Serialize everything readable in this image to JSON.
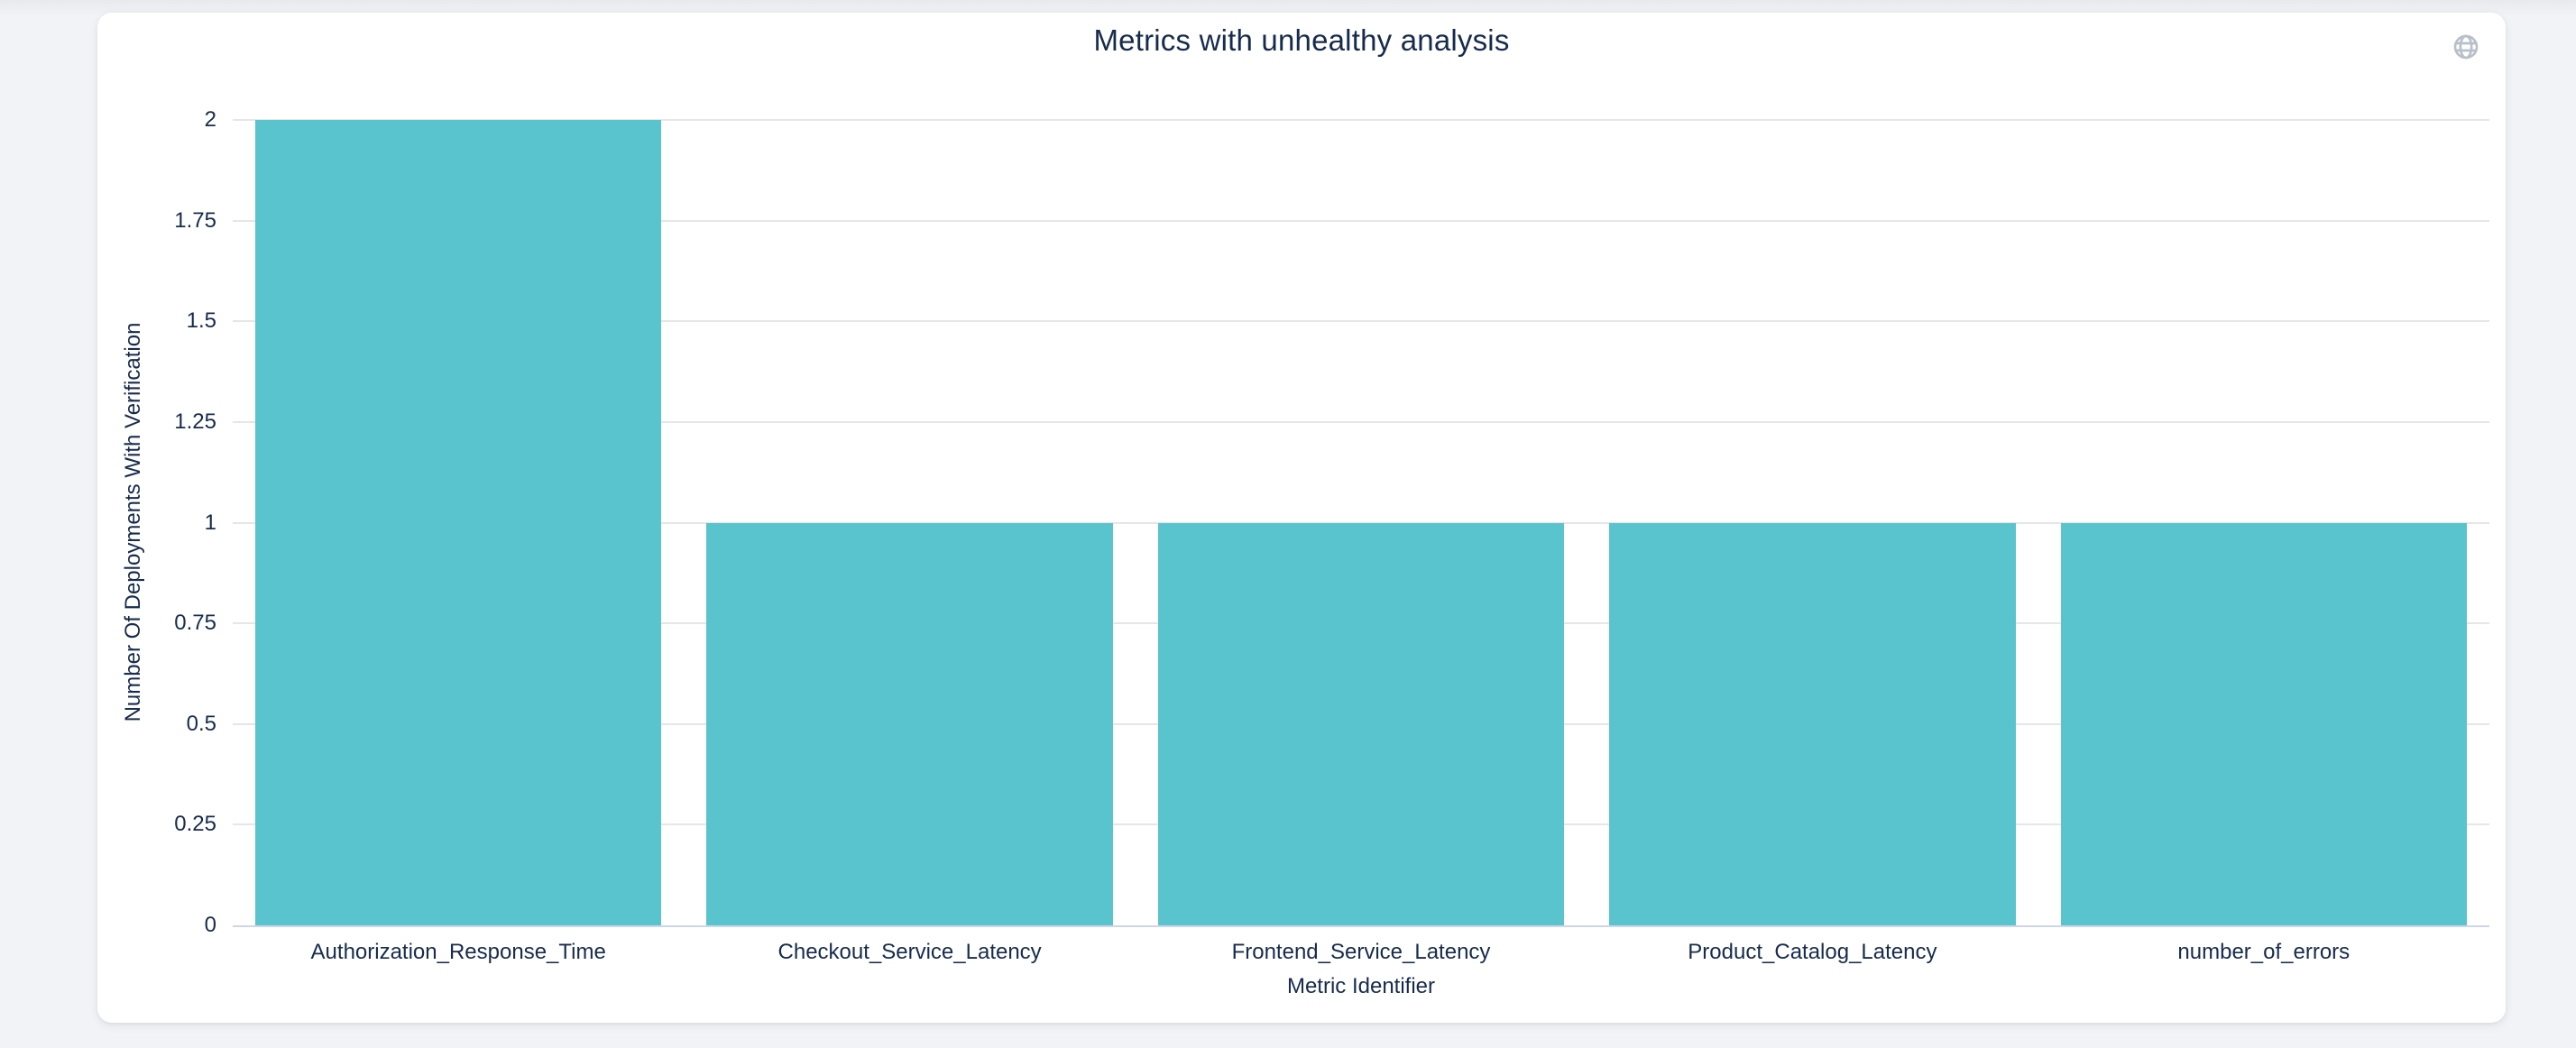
{
  "header": {
    "globe_icon": "globe-icon"
  },
  "colors": {
    "bar": "#5ac4ce",
    "gridline": "#e6e6e6",
    "axis_line": "#ccd6eb",
    "text": "#172b4d",
    "icon": "#b9c0ca",
    "card_background": "#ffffff",
    "page_background": "#f1f3f6"
  },
  "chart_data": {
    "type": "bar",
    "title": "Metrics with unhealthy analysis",
    "categories": [
      "Authorization_Response_Time",
      "Checkout_Service_Latency",
      "Frontend_Service_Latency",
      "Product_Catalog_Latency",
      "number_of_errors"
    ],
    "values": [
      2,
      1,
      1,
      1,
      1
    ],
    "xlabel": "Metric Identifier",
    "ylabel": "Number Of Deployments With Verification",
    "ylim": [
      0,
      2
    ],
    "yticks": [
      0,
      0.25,
      0.5,
      0.75,
      1,
      1.25,
      1.5,
      1.75,
      2
    ],
    "ytick_labels": [
      "0",
      "0.25",
      "0.5",
      "0.75",
      "1",
      "1.25",
      "1.5",
      "1.75",
      "2"
    ],
    "grid": true,
    "legend_position": "none",
    "bar_slot_fill_ratio": 0.9
  }
}
